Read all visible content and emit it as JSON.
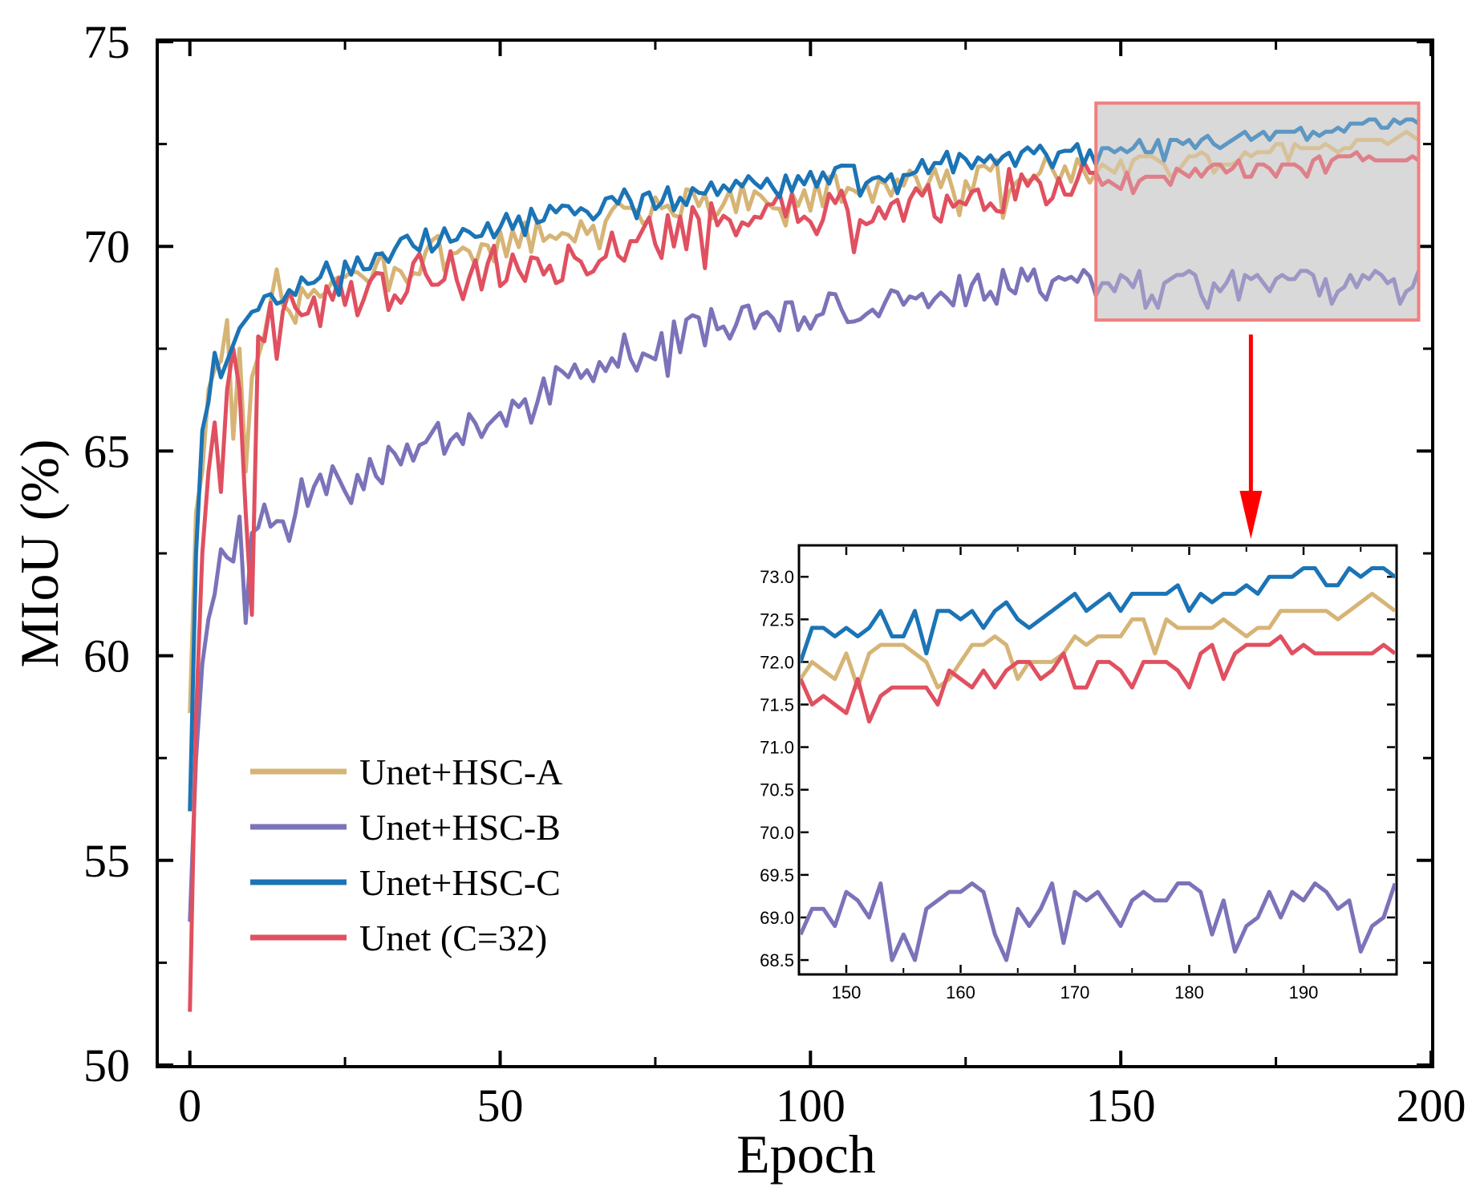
{
  "chart_data": [
    {
      "id": "main",
      "type": "line",
      "title": "",
      "xlabel": "Epoch",
      "ylabel": "MIoU (%)",
      "xlim": [
        -5,
        200
      ],
      "ylim": [
        50,
        75
      ],
      "xticks": [
        0,
        50,
        100,
        150,
        200
      ],
      "yticks": [
        50,
        55,
        60,
        65,
        70,
        75
      ],
      "xtick_labels": [
        "0",
        "50",
        "100",
        "150",
        "200"
      ],
      "ytick_labels": [
        "50",
        "55",
        "60",
        "65",
        "70",
        "75"
      ],
      "legend": "lower-left",
      "series": [
        {
          "name": "Unet+HSC-A",
          "color": "#d6b476",
          "anchors": [
            [
              0,
              58.6
            ],
            [
              1,
              63.5
            ],
            [
              2,
              64.5
            ],
            [
              3,
              66.5
            ],
            [
              4,
              67.0
            ],
            [
              5,
              67.2
            ],
            [
              6,
              68.2
            ],
            [
              7,
              65.3
            ],
            [
              8,
              67.5
            ],
            [
              9,
              64.5
            ],
            [
              10,
              66.8
            ],
            [
              12,
              67.8
            ],
            [
              14,
              69.3
            ],
            [
              16,
              68.3
            ],
            [
              20,
              68.9
            ],
            [
              25,
              69.2
            ],
            [
              30,
              69.5
            ],
            [
              35,
              69.0
            ],
            [
              40,
              69.9
            ],
            [
              50,
              70.0
            ],
            [
              60,
              70.4
            ],
            [
              70,
              70.8
            ],
            [
              80,
              71.0
            ],
            [
              90,
              71.2
            ],
            [
              100,
              71.3
            ],
            [
              110,
              71.4
            ],
            [
              120,
              71.6
            ],
            [
              130,
              71.7
            ],
            [
              140,
              71.8
            ],
            [
              146,
              71.7
            ],
            [
              150,
              72.0
            ],
            [
              155,
              72.2
            ],
            [
              160,
              72.0
            ],
            [
              165,
              72.1
            ],
            [
              170,
              72.3
            ],
            [
              175,
              72.3
            ],
            [
              180,
              72.4
            ],
            [
              185,
              72.4
            ],
            [
              190,
              72.6
            ],
            [
              195,
              72.7
            ],
            [
              198,
              72.6
            ]
          ]
        },
        {
          "name": "Unet+HSC-B",
          "color": "#7b73b9",
          "anchors": [
            [
              0,
              53.5
            ],
            [
              1,
              57.5
            ],
            [
              2,
              59.8
            ],
            [
              3,
              60.9
            ],
            [
              4,
              61.5
            ],
            [
              5,
              62.6
            ],
            [
              6,
              62.4
            ],
            [
              7,
              62.3
            ],
            [
              8,
              63.4
            ],
            [
              9,
              60.8
            ],
            [
              10,
              63.0
            ],
            [
              14,
              63.5
            ],
            [
              20,
              64.2
            ],
            [
              30,
              64.5
            ],
            [
              40,
              65.3
            ],
            [
              50,
              66.0
            ],
            [
              60,
              66.7
            ],
            [
              70,
              67.4
            ],
            [
              80,
              67.9
            ],
            [
              90,
              68.2
            ],
            [
              100,
              68.4
            ],
            [
              110,
              68.6
            ],
            [
              120,
              68.8
            ],
            [
              130,
              69.0
            ],
            [
              140,
              69.1
            ],
            [
              146,
              69.0
            ],
            [
              150,
              69.1
            ],
            [
              155,
              68.7
            ],
            [
              160,
              69.3
            ],
            [
              165,
              69.0
            ],
            [
              170,
              69.1
            ],
            [
              175,
              69.3
            ],
            [
              180,
              69.3
            ],
            [
              185,
              68.9
            ],
            [
              190,
              69.3
            ],
            [
              195,
              68.9
            ],
            [
              198,
              69.4
            ]
          ]
        },
        {
          "name": "Unet+HSC-C",
          "color": "#1b74b5",
          "anchors": [
            [
              0,
              56.2
            ],
            [
              1,
              62.5
            ],
            [
              2,
              65.5
            ],
            [
              3,
              66.2
            ],
            [
              4,
              67.4
            ],
            [
              5,
              66.8
            ],
            [
              6,
              67.2
            ],
            [
              8,
              68.0
            ],
            [
              10,
              68.4
            ],
            [
              14,
              68.6
            ],
            [
              20,
              69.3
            ],
            [
              30,
              69.8
            ],
            [
              40,
              70.2
            ],
            [
              50,
              70.5
            ],
            [
              60,
              70.8
            ],
            [
              70,
              71.1
            ],
            [
              80,
              71.3
            ],
            [
              90,
              71.5
            ],
            [
              100,
              71.6
            ],
            [
              110,
              71.8
            ],
            [
              120,
              72.0
            ],
            [
              130,
              72.1
            ],
            [
              140,
              72.2
            ],
            [
              146,
              72.3
            ],
            [
              150,
              72.4
            ],
            [
              155,
              72.4
            ],
            [
              160,
              72.5
            ],
            [
              165,
              72.6
            ],
            [
              170,
              72.7
            ],
            [
              175,
              72.8
            ],
            [
              180,
              72.8
            ],
            [
              185,
              72.8
            ],
            [
              190,
              73.0
            ],
            [
              195,
              73.0
            ],
            [
              198,
              73.0
            ]
          ]
        },
        {
          "name": "Unet (C=32)",
          "color": "#e05060",
          "anchors": [
            [
              0,
              51.3
            ],
            [
              1,
              58.5
            ],
            [
              2,
              62.5
            ],
            [
              3,
              64.5
            ],
            [
              4,
              65.7
            ],
            [
              5,
              64.0
            ],
            [
              6,
              66.5
            ],
            [
              7,
              67.5
            ],
            [
              8,
              66.5
            ],
            [
              9,
              63.5
            ],
            [
              10,
              61.0
            ],
            [
              11,
              67.8
            ],
            [
              14,
              68.3
            ],
            [
              20,
              68.5
            ],
            [
              30,
              69.0
            ],
            [
              40,
              69.4
            ],
            [
              50,
              69.5
            ],
            [
              60,
              69.6
            ],
            [
              70,
              70.0
            ],
            [
              80,
              70.4
            ],
            [
              90,
              70.7
            ],
            [
              100,
              70.8
            ],
            [
              110,
              71.0
            ],
            [
              120,
              71.1
            ],
            [
              130,
              71.4
            ],
            [
              140,
              71.5
            ],
            [
              146,
              71.6
            ],
            [
              150,
              71.5
            ],
            [
              155,
              71.7
            ],
            [
              160,
              71.8
            ],
            [
              165,
              71.9
            ],
            [
              170,
              71.9
            ],
            [
              175,
              72.0
            ],
            [
              180,
              72.0
            ],
            [
              185,
              72.1
            ],
            [
              190,
              72.2
            ],
            [
              195,
              72.1
            ],
            [
              198,
              72.1
            ]
          ]
        }
      ],
      "annotations": {
        "zoom_box_x": [
          146,
          198
        ],
        "zoom_box_y": [
          68.2,
          73.5
        ],
        "zoom_box_color": "#f08080",
        "arrow_color": "#ff0000"
      }
    },
    {
      "id": "inset",
      "type": "line",
      "title": "",
      "xlabel": "",
      "ylabel": "",
      "xlim": [
        146,
        198
      ],
      "ylim": [
        68.35,
        73.35
      ],
      "xticks": [
        150,
        160,
        170,
        180,
        190
      ],
      "yticks": [
        68.5,
        69.0,
        69.5,
        70.0,
        70.5,
        71.0,
        71.5,
        72.0,
        72.5,
        73.0
      ],
      "xtick_labels": [
        "150",
        "160",
        "170",
        "180",
        "190"
      ],
      "ytick_labels": [
        "68.5",
        "69.0",
        "69.5",
        "70.0",
        "70.5",
        "71.0",
        "71.5",
        "72.0",
        "72.5",
        "73.0"
      ],
      "x": [
        146,
        147,
        148,
        149,
        150,
        151,
        152,
        153,
        154,
        155,
        156,
        157,
        158,
        159,
        160,
        161,
        162,
        163,
        164,
        165,
        166,
        167,
        168,
        169,
        170,
        171,
        172,
        173,
        174,
        175,
        176,
        177,
        178,
        179,
        180,
        181,
        182,
        183,
        184,
        185,
        186,
        187,
        188,
        189,
        190,
        191,
        192,
        193,
        194,
        195,
        196,
        197,
        198
      ],
      "series": [
        {
          "name": "Unet+HSC-A",
          "color": "#d6b476",
          "values": [
            71.8,
            72.0,
            71.9,
            71.8,
            72.1,
            71.7,
            72.1,
            72.2,
            72.2,
            72.2,
            72.1,
            72.0,
            71.7,
            71.8,
            72.0,
            72.2,
            72.2,
            72.3,
            72.2,
            71.8,
            72.0,
            72.0,
            72.0,
            72.1,
            72.3,
            72.2,
            72.3,
            72.3,
            72.3,
            72.5,
            72.5,
            72.1,
            72.5,
            72.4,
            72.4,
            72.4,
            72.4,
            72.5,
            72.4,
            72.3,
            72.4,
            72.4,
            72.6,
            72.6,
            72.6,
            72.6,
            72.6,
            72.5,
            72.6,
            72.7,
            72.8,
            72.7,
            72.6
          ]
        },
        {
          "name": "Unet+HSC-B",
          "color": "#7b73b9",
          "values": [
            68.8,
            69.1,
            69.1,
            68.9,
            69.3,
            69.2,
            69.0,
            69.4,
            68.5,
            68.8,
            68.5,
            69.1,
            69.2,
            69.3,
            69.3,
            69.4,
            69.3,
            68.8,
            68.5,
            69.1,
            68.9,
            69.1,
            69.4,
            68.7,
            69.3,
            69.2,
            69.3,
            69.1,
            68.9,
            69.2,
            69.3,
            69.2,
            69.2,
            69.4,
            69.4,
            69.3,
            68.8,
            69.2,
            68.6,
            68.9,
            69.0,
            69.3,
            69.0,
            69.3,
            69.2,
            69.4,
            69.3,
            69.1,
            69.2,
            68.6,
            68.9,
            69.0,
            69.4
          ]
        },
        {
          "name": "Unet+HSC-C",
          "color": "#1b74b5",
          "values": [
            72.0,
            72.4,
            72.4,
            72.3,
            72.4,
            72.3,
            72.4,
            72.6,
            72.3,
            72.3,
            72.6,
            72.1,
            72.6,
            72.6,
            72.5,
            72.6,
            72.4,
            72.6,
            72.7,
            72.5,
            72.4,
            72.5,
            72.6,
            72.7,
            72.8,
            72.6,
            72.7,
            72.8,
            72.6,
            72.8,
            72.8,
            72.8,
            72.8,
            72.9,
            72.6,
            72.8,
            72.7,
            72.8,
            72.8,
            72.9,
            72.8,
            73.0,
            73.0,
            73.0,
            73.1,
            73.1,
            72.9,
            72.9,
            73.1,
            73.0,
            73.1,
            73.1,
            73.0
          ]
        },
        {
          "name": "Unet (C=32)",
          "color": "#e05060",
          "values": [
            71.8,
            71.5,
            71.6,
            71.5,
            71.4,
            71.8,
            71.3,
            71.6,
            71.7,
            71.7,
            71.7,
            71.7,
            71.5,
            71.9,
            71.8,
            71.7,
            71.9,
            71.7,
            71.9,
            72.0,
            72.0,
            71.8,
            71.9,
            72.1,
            71.7,
            71.7,
            72.0,
            72.0,
            71.9,
            71.7,
            72.0,
            72.0,
            72.0,
            71.9,
            71.7,
            72.1,
            72.2,
            71.8,
            72.1,
            72.2,
            72.2,
            72.2,
            72.3,
            72.1,
            72.2,
            72.1,
            72.1,
            72.1,
            72.1,
            72.1,
            72.1,
            72.2,
            72.1
          ]
        }
      ]
    }
  ]
}
